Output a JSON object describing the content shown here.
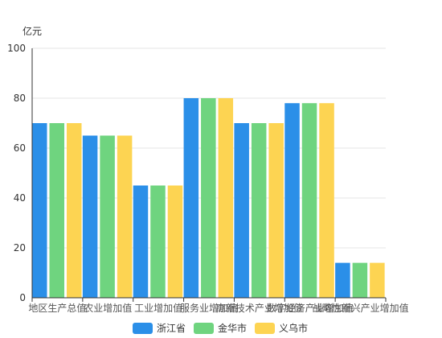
{
  "chart_data": {
    "type": "bar",
    "ylabel": "亿元",
    "ylim": [
      0,
      100
    ],
    "yticks": [
      0,
      20,
      40,
      60,
      80,
      100
    ],
    "grid": true,
    "legend_position": "bottom",
    "categories": [
      "地区生产总值",
      "农业增加值",
      "工业增加值",
      "服务业增加值",
      "高新技术产业增加值",
      "数字经济产业增加值",
      "战略性新兴产业增加值"
    ],
    "series": [
      {
        "name": "浙江省",
        "color": "#2b8fe8",
        "values": [
          70,
          65,
          45,
          80,
          70,
          78,
          14
        ]
      },
      {
        "name": "金华市",
        "color": "#6fd47f",
        "values": [
          70,
          65,
          45,
          80,
          70,
          78,
          14
        ]
      },
      {
        "name": "义乌市",
        "color": "#fdd452",
        "values": [
          70,
          65,
          45,
          80,
          70,
          78,
          14
        ]
      }
    ]
  }
}
